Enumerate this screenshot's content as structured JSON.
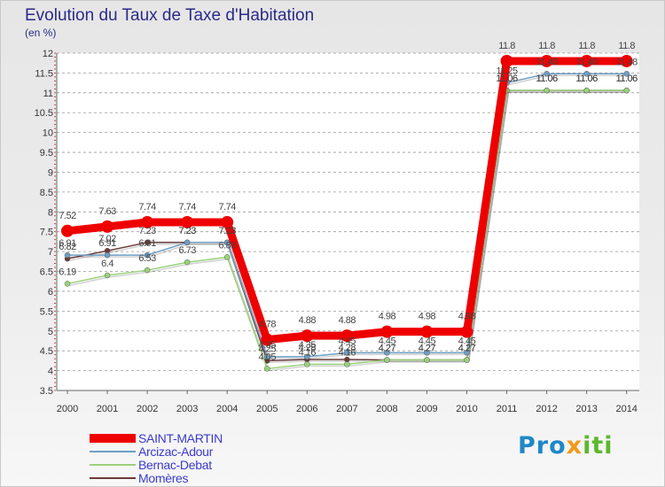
{
  "title": "Evolution du Taux de Taxe d'Habitation",
  "subtitle": "(en %)",
  "logo": {
    "part1": "Pro",
    "part2": "x",
    "part3": "iti"
  },
  "colors": {
    "background_top": "#e6e6e6",
    "grid": "#9a9a9a",
    "axis_tick_red": "#cc2222",
    "label_text": "#444444"
  },
  "chart_data": {
    "type": "line",
    "title": "Evolution du Taux de Taxe d'Habitation",
    "ylabel": "(en %)",
    "xlabel": "",
    "x": [
      "2000",
      "2001",
      "2002",
      "2003",
      "2004",
      "2005",
      "2006",
      "2007",
      "2008",
      "2009",
      "2010",
      "2011",
      "2012",
      "2013",
      "2014"
    ],
    "ylim": [
      3.5,
      12
    ],
    "yticks": [
      "3.5",
      "4",
      "4.5",
      "5",
      "5.5",
      "6",
      "6.5",
      "7",
      "7.5",
      "8",
      "8.5",
      "9",
      "9.5",
      "10",
      "10.5",
      "11",
      "11.5",
      "12"
    ],
    "grid": "horizontal dashed",
    "legend_position": "bottom-left",
    "series": [
      {
        "name": "SAINT-MARTIN",
        "color": "#ee0000",
        "values": [
          7.52,
          7.63,
          7.74,
          7.74,
          7.74,
          4.78,
          4.88,
          4.88,
          4.98,
          4.98,
          4.98,
          11.8,
          11.8,
          11.8,
          11.8
        ],
        "labels": [
          "7.52",
          "7.63",
          "7.74",
          "7.74",
          "7.74",
          "4.78",
          "4.88",
          "4.88",
          "4.98",
          "4.98",
          "4.98",
          "11.8",
          "11.8",
          "11.8",
          "11.8"
        ]
      },
      {
        "name": "Arcizac-Adour",
        "color": "#6e9ec4",
        "values": [
          6.91,
          6.91,
          6.91,
          7.23,
          7.23,
          4.35,
          4.35,
          4.45,
          4.45,
          4.45,
          4.45,
          11.25,
          11.48,
          11.48,
          11.48
        ],
        "labels": [
          "6.91",
          "6.91",
          "6.91",
          "7.23",
          "7.23",
          "4.35",
          "4.35",
          "4.45",
          "4.45",
          "4.45",
          "4.45",
          "11.25",
          "11.48",
          "11.48",
          "11.48"
        ]
      },
      {
        "name": "Bernac-Debat",
        "color": "#99d27a",
        "values": [
          6.19,
          6.4,
          6.53,
          6.73,
          6.86,
          4.05,
          4.16,
          4.16,
          4.27,
          4.27,
          4.27,
          11.06,
          11.06,
          11.06,
          11.06
        ],
        "labels": [
          "6.19",
          "6.4",
          "6.53",
          "6.73",
          "6.86",
          "4.05",
          "4.16",
          "4.16",
          "4.27",
          "4.27",
          "4.27",
          "11.06",
          "11.06",
          "11.06",
          "11.06"
        ]
      },
      {
        "name": "Momères",
        "color": "#6b3a3a",
        "values": [
          6.82,
          7.02,
          7.23,
          7.23,
          7.23,
          4.25,
          4.28,
          4.28,
          4.27,
          4.27,
          4.27,
          11.06,
          11.06,
          11.06,
          11.06
        ],
        "labels": [
          "6.82",
          "7.02",
          "7.23",
          "7.23",
          "7.23",
          "4.25",
          "4.28",
          "4.28",
          "4.27",
          "4.27",
          "4.27",
          "11.06",
          "11.06",
          "11.06",
          "11.06"
        ]
      }
    ]
  }
}
